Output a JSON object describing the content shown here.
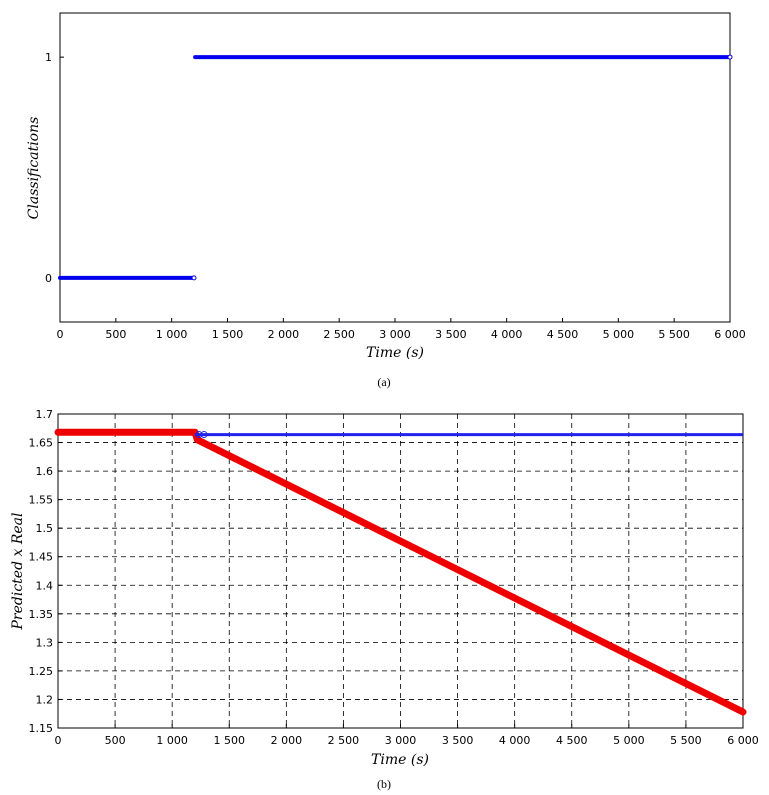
{
  "chart_data": [
    {
      "panel": "a",
      "type": "scatter",
      "caption": "(a)",
      "xlabel": "Time (s)",
      "ylabel": "Classifications",
      "xlim": [
        0,
        6000
      ],
      "ylim": [
        -0.2,
        1.2
      ],
      "xticks": [
        0,
        500,
        1000,
        1500,
        2000,
        2500,
        3000,
        3500,
        4000,
        4500,
        5000,
        5500,
        6000
      ],
      "xtick_labels": [
        "0",
        "500",
        "1 000",
        "1 500",
        "2 000",
        "2 500",
        "3 000",
        "3 500",
        "4 000",
        "4 500",
        "5 000",
        "5 500",
        "6 000"
      ],
      "yticks": [
        0,
        1
      ],
      "ytick_labels": [
        "0",
        "1"
      ],
      "grid": false,
      "series": [
        {
          "color": "#0000ee",
          "marker": "circle",
          "segments": [
            {
              "x_start": 0,
              "x_end": 1200,
              "y": 0
            },
            {
              "x_start": 1210,
              "x_end": 6000,
              "y": 1
            }
          ]
        }
      ]
    },
    {
      "panel": "b",
      "type": "line",
      "caption": "(b)",
      "xlabel": "Time (s)",
      "ylabel": "Predicted x Real",
      "xlim": [
        0,
        6000
      ],
      "ylim": [
        1.15,
        1.7
      ],
      "xticks": [
        0,
        500,
        1000,
        1500,
        2000,
        2500,
        3000,
        3500,
        4000,
        4500,
        5000,
        5500,
        6000
      ],
      "xtick_labels": [
        "0",
        "500",
        "1 000",
        "1 500",
        "2 000",
        "2 500",
        "3 000",
        "3 500",
        "4 000",
        "4 500",
        "5 000",
        "5 500",
        "6 000"
      ],
      "yticks": [
        1.15,
        1.2,
        1.25,
        1.3,
        1.35,
        1.4,
        1.45,
        1.5,
        1.55,
        1.6,
        1.65,
        1.7
      ],
      "ytick_labels": [
        "1.15",
        "1.2",
        "1.25",
        "1.3",
        "1.35",
        "1.4",
        "1.45",
        "1.5",
        "1.55",
        "1.6",
        "1.65",
        "1.7"
      ],
      "grid": true,
      "series": [
        {
          "color": "#ee0000",
          "x": [
            0,
            1200,
            1220,
            6000
          ],
          "y": [
            1.668,
            1.668,
            1.655,
            1.178
          ]
        },
        {
          "color": "#2222ee",
          "x": [
            1200,
            1250,
            6000
          ],
          "y": [
            1.664,
            1.664,
            1.664
          ]
        }
      ]
    }
  ]
}
